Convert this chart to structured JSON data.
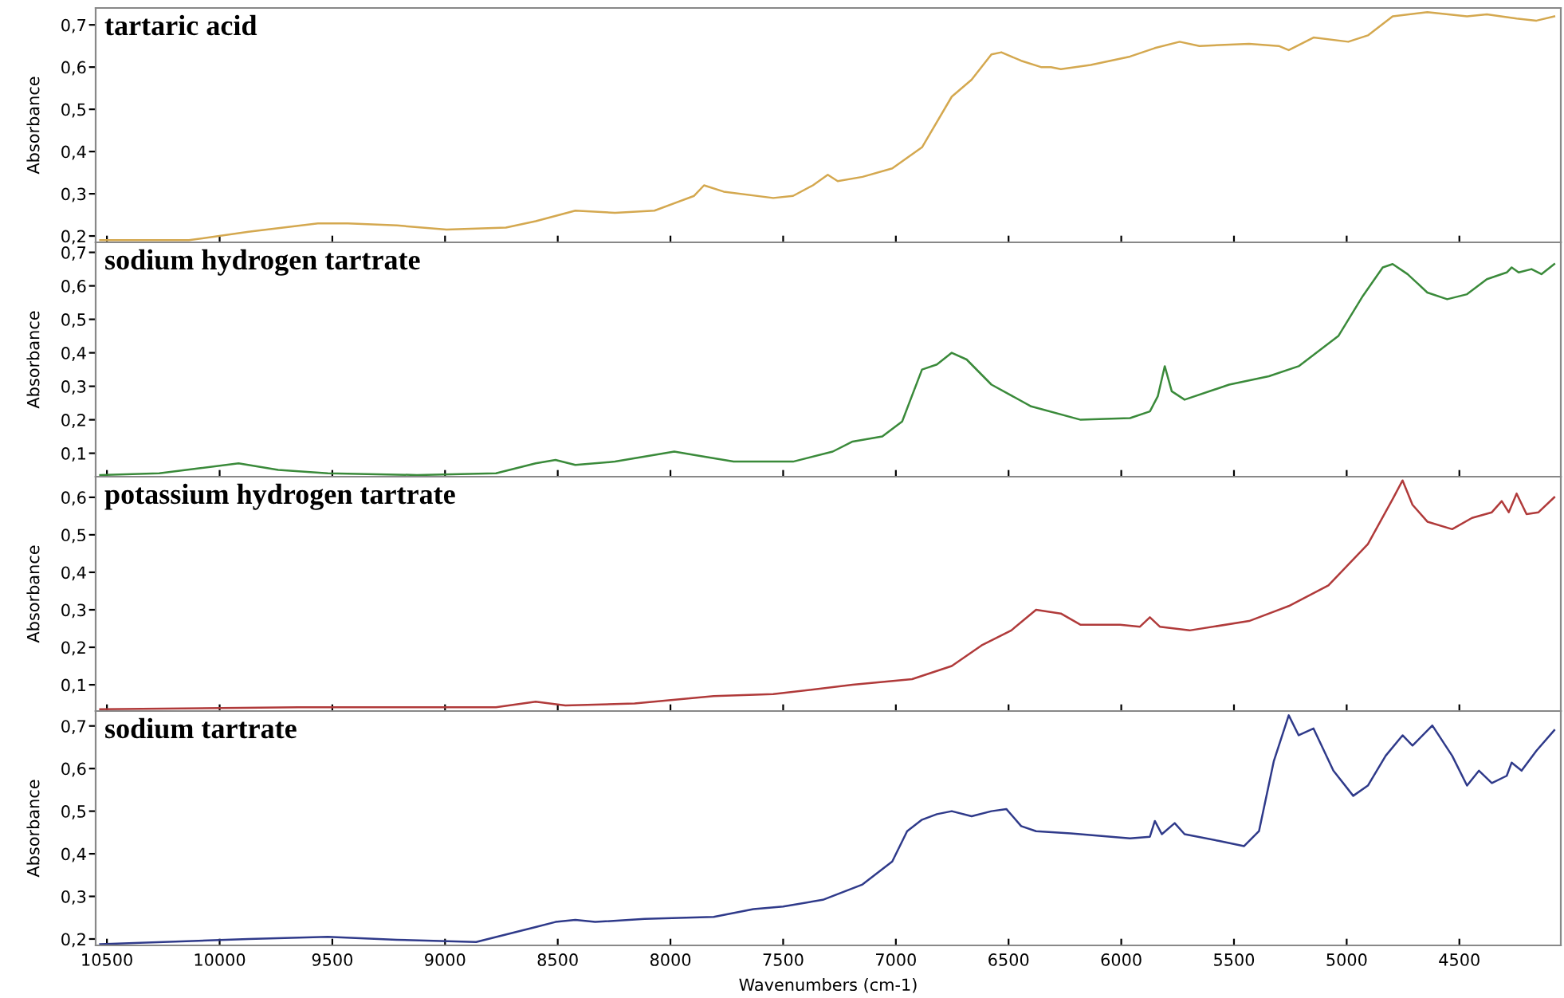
{
  "chart_data": [
    {
      "type": "line",
      "title": "tartaric acid",
      "ylabel": "Absorbance",
      "xlim": [
        10550,
        4050
      ],
      "xticks": [
        10500,
        10000,
        9500,
        9000,
        8500,
        8000,
        7500,
        7000,
        6500,
        6000,
        5500,
        5000,
        4500
      ],
      "ylim": [
        0.185,
        0.74
      ],
      "yticks": [
        {
          "value": 0.2,
          "label": "0,2"
        },
        {
          "value": 0.3,
          "label": "0,3"
        },
        {
          "value": 0.4,
          "label": "0,4"
        },
        {
          "value": 0.5,
          "label": "0,5"
        },
        {
          "value": 0.6,
          "label": "0,6"
        },
        {
          "value": 0.7,
          "label": "0,7"
        }
      ],
      "tick_labels": "y",
      "grid": false,
      "legend": false,
      "series": [
        {
          "color": "#d4a84f",
          "x": [
            10530,
            10136,
            9872,
            9564,
            9432,
            9213,
            8993,
            8730,
            8598,
            8422,
            8246,
            8071,
            7895,
            7851,
            7764,
            7544,
            7456,
            7368,
            7302,
            7258,
            7148,
            7016,
            6884,
            6752,
            6664,
            6576,
            6532,
            6444,
            6356,
            6312,
            6268,
            6136,
            5961,
            5851,
            5741,
            5653,
            5433,
            5301,
            5257,
            5147,
            4993,
            4906,
            4796,
            4642,
            4466,
            4378,
            4246,
            4158,
            4079
          ],
          "values": [
            0.19,
            0.19,
            0.21,
            0.23,
            0.23,
            0.225,
            0.215,
            0.22,
            0.235,
            0.26,
            0.255,
            0.26,
            0.295,
            0.32,
            0.305,
            0.29,
            0.295,
            0.32,
            0.345,
            0.33,
            0.34,
            0.36,
            0.41,
            0.53,
            0.57,
            0.63,
            0.635,
            0.615,
            0.6,
            0.6,
            0.595,
            0.605,
            0.625,
            0.645,
            0.66,
            0.65,
            0.655,
            0.65,
            0.64,
            0.67,
            0.66,
            0.675,
            0.72,
            0.73,
            0.72,
            0.725,
            0.715,
            0.71,
            0.72
          ]
        }
      ]
    },
    {
      "type": "line",
      "title": "sodium hydrogen tartrate",
      "ylabel": "Absorbance",
      "xlim": [
        10550,
        4050
      ],
      "xticks": [
        10500,
        10000,
        9500,
        9000,
        8500,
        8000,
        7500,
        7000,
        6500,
        6000,
        5500,
        5000,
        4500
      ],
      "ylim": [
        0.03,
        0.73
      ],
      "yticks": [
        {
          "value": 0.1,
          "label": "0,1"
        },
        {
          "value": 0.2,
          "label": "0,2"
        },
        {
          "value": 0.3,
          "label": "0,3"
        },
        {
          "value": 0.4,
          "label": "0,4"
        },
        {
          "value": 0.5,
          "label": "0,5"
        },
        {
          "value": 0.6,
          "label": "0,6"
        },
        {
          "value": 0.7,
          "label": "0,7"
        }
      ],
      "tick_labels": "y",
      "grid": false,
      "legend": false,
      "series": [
        {
          "color": "#3a8a3a",
          "x": [
            10530,
            10268,
            10092,
            9916,
            9740,
            9520,
            9125,
            8774,
            8598,
            8510,
            8422,
            8246,
            7983,
            7895,
            7720,
            7456,
            7280,
            7192,
            7060,
            6972,
            6884,
            6818,
            6752,
            6686,
            6576,
            6400,
            6180,
            5961,
            5873,
            5838,
            5807,
            5776,
            5719,
            5521,
            5345,
            5213,
            5037,
            4928,
            4840,
            4796,
            4730,
            4642,
            4554,
            4466,
            4378,
            4290,
            4268,
            4237,
            4180,
            4136,
            4079
          ],
          "values": [
            0.035,
            0.04,
            0.055,
            0.07,
            0.05,
            0.04,
            0.035,
            0.04,
            0.07,
            0.08,
            0.065,
            0.075,
            0.105,
            0.095,
            0.075,
            0.075,
            0.105,
            0.135,
            0.15,
            0.195,
            0.35,
            0.365,
            0.4,
            0.38,
            0.305,
            0.24,
            0.2,
            0.205,
            0.225,
            0.27,
            0.36,
            0.285,
            0.26,
            0.305,
            0.33,
            0.36,
            0.45,
            0.57,
            0.655,
            0.665,
            0.635,
            0.58,
            0.56,
            0.575,
            0.62,
            0.64,
            0.655,
            0.64,
            0.65,
            0.635,
            0.665
          ]
        }
      ]
    },
    {
      "type": "line",
      "title": "potassium hydrogen tartrate",
      "ylabel": "Absorbance",
      "xlim": [
        10550,
        4050
      ],
      "xticks": [
        10500,
        10000,
        9500,
        9000,
        8500,
        8000,
        7500,
        7000,
        6500,
        6000,
        5500,
        5000,
        4500
      ],
      "ylim": [
        0.03,
        0.655
      ],
      "yticks": [
        {
          "value": 0.1,
          "label": "0,1"
        },
        {
          "value": 0.2,
          "label": "0,2"
        },
        {
          "value": 0.3,
          "label": "0,3"
        },
        {
          "value": 0.4,
          "label": "0,4"
        },
        {
          "value": 0.5,
          "label": "0,5"
        },
        {
          "value": 0.6,
          "label": "0,6"
        }
      ],
      "tick_labels": "y",
      "grid": false,
      "legend": false,
      "series": [
        {
          "color": "#b03a3a",
          "x": [
            10530,
            9652,
            8774,
            8598,
            8466,
            8159,
            7808,
            7544,
            7192,
            6928,
            6752,
            6620,
            6488,
            6378,
            6268,
            6180,
            6005,
            5917,
            5873,
            5829,
            5697,
            5433,
            5257,
            5081,
            4906,
            4796,
            4752,
            4708,
            4642,
            4532,
            4444,
            4356,
            4312,
            4281,
            4246,
            4202,
            4149,
            4079
          ],
          "values": [
            0.035,
            0.04,
            0.04,
            0.055,
            0.045,
            0.05,
            0.07,
            0.075,
            0.1,
            0.115,
            0.15,
            0.205,
            0.245,
            0.3,
            0.29,
            0.26,
            0.26,
            0.255,
            0.28,
            0.255,
            0.245,
            0.27,
            0.31,
            0.365,
            0.475,
            0.595,
            0.645,
            0.58,
            0.535,
            0.515,
            0.545,
            0.56,
            0.59,
            0.56,
            0.61,
            0.555,
            0.56,
            0.6
          ]
        }
      ]
    },
    {
      "type": "line",
      "title": "sodium tartrate",
      "ylabel": "Absorbance",
      "xlabel": "Wavenumbers (cm-1)",
      "xlim": [
        10550,
        4050
      ],
      "xticks": [
        10500,
        10000,
        9500,
        9000,
        8500,
        8000,
        7500,
        7000,
        6500,
        6000,
        5500,
        5000,
        4500
      ],
      "ylim": [
        0.185,
        0.735
      ],
      "yticks": [
        {
          "value": 0.2,
          "label": "0,2"
        },
        {
          "value": 0.3,
          "label": "0,3"
        },
        {
          "value": 0.4,
          "label": "0,4"
        },
        {
          "value": 0.5,
          "label": "0,5"
        },
        {
          "value": 0.6,
          "label": "0,6"
        },
        {
          "value": 0.7,
          "label": "0,7"
        }
      ],
      "grid": false,
      "legend": false,
      "series": [
        {
          "color": "#2f3a8a",
          "x": [
            10530,
            9872,
            9520,
            9213,
            8862,
            8598,
            8510,
            8422,
            8334,
            8115,
            7808,
            7632,
            7500,
            7324,
            7148,
            7016,
            6950,
            6884,
            6818,
            6752,
            6664,
            6576,
            6510,
            6444,
            6378,
            6224,
            5961,
            5873,
            5851,
            5820,
            5763,
            5719,
            5565,
            5455,
            5389,
            5323,
            5257,
            5213,
            5147,
            5059,
            4971,
            4906,
            4827,
            4752,
            4708,
            4620,
            4532,
            4466,
            4413,
            4356,
            4290,
            4268,
            4224,
            4158,
            4079
          ],
          "values": [
            0.188,
            0.2,
            0.205,
            0.198,
            0.193,
            0.228,
            0.24,
            0.245,
            0.24,
            0.247,
            0.252,
            0.27,
            0.276,
            0.292,
            0.328,
            0.382,
            0.453,
            0.48,
            0.493,
            0.5,
            0.488,
            0.5,
            0.505,
            0.465,
            0.453,
            0.448,
            0.436,
            0.44,
            0.477,
            0.446,
            0.472,
            0.446,
            0.43,
            0.418,
            0.453,
            0.618,
            0.725,
            0.678,
            0.694,
            0.595,
            0.536,
            0.56,
            0.63,
            0.678,
            0.654,
            0.701,
            0.63,
            0.56,
            0.595,
            0.566,
            0.583,
            0.614,
            0.595,
            0.642,
            0.69
          ]
        }
      ]
    }
  ]
}
